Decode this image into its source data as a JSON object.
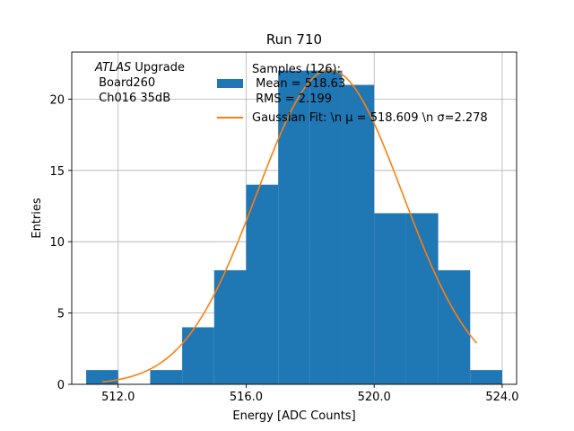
{
  "chart_data": {
    "type": "bar",
    "title": "Run 710",
    "xlabel": "Energy [ADC Counts]",
    "ylabel": "Entries",
    "xlim": [
      510.55,
      524.45
    ],
    "ylim": [
      0,
      23.3
    ],
    "xticks": [
      512,
      516,
      520,
      524
    ],
    "xtick_labels": [
      "512.0",
      "516.0",
      "520.0",
      "524.0"
    ],
    "yticks": [
      0,
      5,
      10,
      15,
      20
    ],
    "ytick_labels": [
      "0",
      "5",
      "10",
      "15",
      "20"
    ],
    "grid": true,
    "bin_edges": [
      511,
      512,
      513,
      514,
      515,
      516,
      517,
      518,
      519,
      520,
      521,
      522,
      523,
      524
    ],
    "counts": [
      1,
      0,
      1,
      4,
      8,
      14,
      22,
      22,
      21,
      12,
      12,
      8,
      1
    ],
    "bar_color": "#1f77b4",
    "fit": {
      "type": "gaussian",
      "mu": 518.609,
      "sigma": 2.278,
      "amplitude": 22.05,
      "x_range": [
        511.5,
        523.2
      ],
      "color": "#ff7f0e"
    },
    "annotation": {
      "italic": "ATLAS",
      "rest": " Upgrade",
      "line2": " Board260",
      "line3": " Ch016 35dB"
    },
    "legend": {
      "position": "top-right",
      "hist_lines": [
        "Samples (126):",
        " Mean = 518.63",
        " RMS = 2.199"
      ],
      "fit_label": "Gaussian Fit: \\n μ = 518.609 \\n σ=2.278"
    }
  }
}
